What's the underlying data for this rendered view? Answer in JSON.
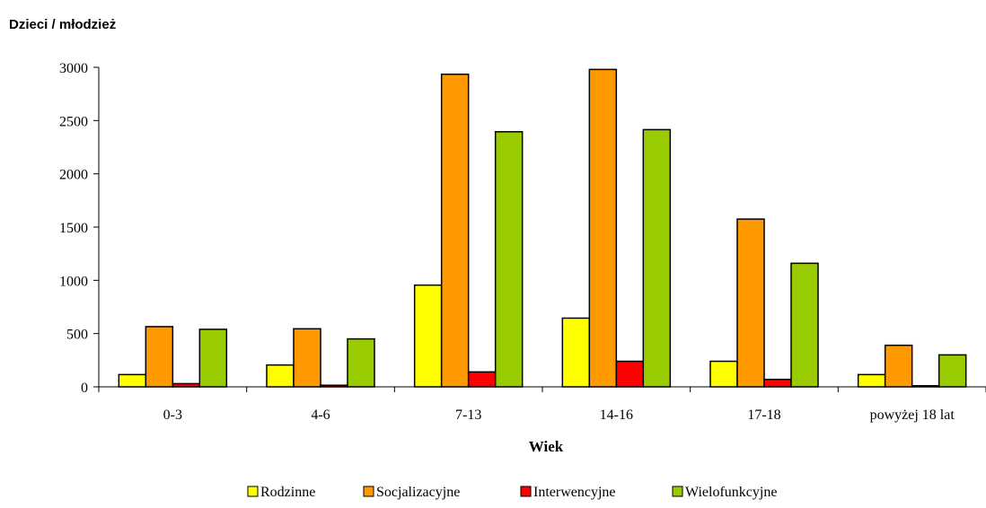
{
  "chart_data": {
    "type": "bar",
    "title": "Dzieci / młodzież",
    "xlabel": "Wiek",
    "ylabel": "",
    "ylim": [
      0,
      3000
    ],
    "yticks": [
      0,
      500,
      1000,
      1500,
      2000,
      2500,
      3000
    ],
    "categories": [
      "0-3",
      "4-6",
      "7-13",
      "14-16",
      "17-18",
      "powyżej 18 lat"
    ],
    "series": [
      {
        "name": "Rodzinne",
        "color": "#ffff00",
        "values": [
          115,
          205,
          955,
          645,
          240,
          115
        ]
      },
      {
        "name": "Socjalizacyjne",
        "color": "#ff9900",
        "values": [
          565,
          545,
          2935,
          2980,
          1575,
          390
        ]
      },
      {
        "name": "Interwencyjne",
        "color": "#ff0000",
        "values": [
          30,
          15,
          140,
          240,
          70,
          10
        ]
      },
      {
        "name": "Wielofunkcyjne",
        "color": "#99cc00",
        "values": [
          540,
          450,
          2395,
          2415,
          1160,
          300
        ]
      }
    ],
    "grid": false,
    "legend_position": "bottom"
  }
}
